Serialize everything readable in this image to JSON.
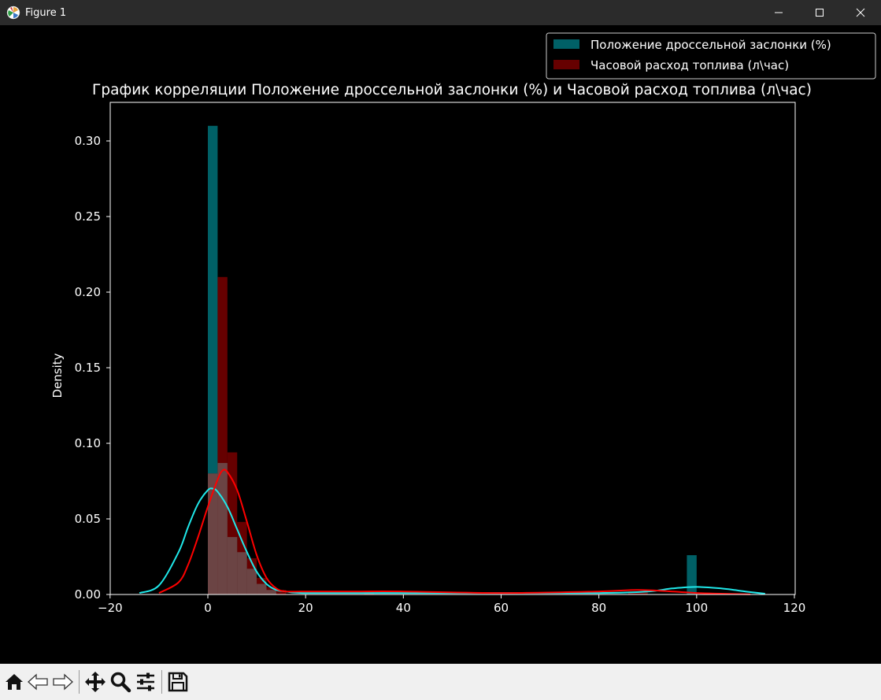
{
  "window": {
    "title": "Figure 1",
    "controls": [
      "minimize-icon",
      "maximize-icon",
      "close-icon"
    ]
  },
  "toolbar": {
    "buttons": [
      "home-icon",
      "back-icon",
      "forward-icon",
      "pan-icon",
      "zoom-icon",
      "configure-icon",
      "save-icon"
    ]
  },
  "colors": {
    "background": "#000000",
    "throttle_hist": "#006066",
    "fuel_hist": "#660000",
    "overlap_hist": "#6b4444",
    "throttle_kde": "#1fe8ea",
    "fuel_kde": "#ff0000",
    "axes": "#ffffff"
  },
  "chart_data": {
    "type": "histogram",
    "title": "График корреляции Положение дроссельной заслонки (%) и Часовой расход топлива (л\\час)",
    "xlabel": "",
    "ylabel": "Density",
    "xlim": [
      -20,
      120
    ],
    "ylim": [
      0,
      0.325
    ],
    "xticks": [
      -20,
      0,
      20,
      40,
      60,
      80,
      100,
      120
    ],
    "xtick_labels": [
      "−20",
      "0",
      "20",
      "40",
      "60",
      "80",
      "100",
      "120"
    ],
    "yticks": [
      0.0,
      0.05,
      0.1,
      0.15,
      0.2,
      0.25,
      0.3
    ],
    "ytick_labels": [
      "0.00",
      "0.05",
      "0.10",
      "0.15",
      "0.20",
      "0.25",
      "0.30"
    ],
    "grid": false,
    "legend_position": "top-right",
    "series": [
      {
        "name": "Положение дроссельной заслонки (%)",
        "kind": "hist",
        "bins": [
          {
            "x0": 0,
            "x1": 2,
            "density": 0.31
          },
          {
            "x0": 2,
            "x1": 4,
            "density": 0.087
          },
          {
            "x0": 4,
            "x1": 6,
            "density": 0.038
          },
          {
            "x0": 6,
            "x1": 8,
            "density": 0.028
          },
          {
            "x0": 8,
            "x1": 10,
            "density": 0.017
          },
          {
            "x0": 10,
            "x1": 12,
            "density": 0.007
          },
          {
            "x0": 12,
            "x1": 14,
            "density": 0.003
          },
          {
            "x0": 98,
            "x1": 100,
            "density": 0.026
          }
        ]
      },
      {
        "name": "Часовой расход топлива (л\\час)",
        "kind": "hist",
        "bins": [
          {
            "x0": 0,
            "x1": 2,
            "density": 0.08
          },
          {
            "x0": 2,
            "x1": 4,
            "density": 0.21
          },
          {
            "x0": 4,
            "x1": 6,
            "density": 0.094
          },
          {
            "x0": 6,
            "x1": 8,
            "density": 0.048
          },
          {
            "x0": 8,
            "x1": 10,
            "density": 0.024
          },
          {
            "x0": 10,
            "x1": 12,
            "density": 0.011
          },
          {
            "x0": 12,
            "x1": 14,
            "density": 0.005
          },
          {
            "x0": 14,
            "x1": 16,
            "density": 0.003
          },
          {
            "x0": 32,
            "x1": 34,
            "density": 0.002
          },
          {
            "x0": 86,
            "x1": 90,
            "density": 0.002
          }
        ]
      },
      {
        "name": "throttle-kde",
        "kind": "kde",
        "x": [
          -14,
          -10,
          -6,
          -4,
          -2,
          0,
          1,
          2,
          4,
          6,
          8,
          10,
          12,
          14,
          16,
          20,
          40,
          60,
          80,
          90,
          95,
          100,
          105,
          110,
          114
        ],
        "y": [
          0.001,
          0.006,
          0.028,
          0.045,
          0.06,
          0.069,
          0.07,
          0.068,
          0.058,
          0.043,
          0.028,
          0.015,
          0.007,
          0.003,
          0.002,
          0.001,
          0.001,
          0.001,
          0.001,
          0.002,
          0.004,
          0.005,
          0.004,
          0.002,
          0.0005
        ]
      },
      {
        "name": "fuel-kde",
        "kind": "kde",
        "x": [
          -10,
          -6,
          -4,
          -2,
          0,
          2,
          3,
          4,
          6,
          8,
          10,
          12,
          14,
          16,
          20,
          30,
          40,
          60,
          80,
          88,
          95,
          100,
          105,
          111
        ],
        "y": [
          0.001,
          0.008,
          0.02,
          0.038,
          0.058,
          0.076,
          0.082,
          0.081,
          0.069,
          0.048,
          0.026,
          0.011,
          0.004,
          0.002,
          0.002,
          0.002,
          0.002,
          0.001,
          0.002,
          0.003,
          0.002,
          0.001,
          0.0005,
          0.0001
        ]
      }
    ]
  }
}
